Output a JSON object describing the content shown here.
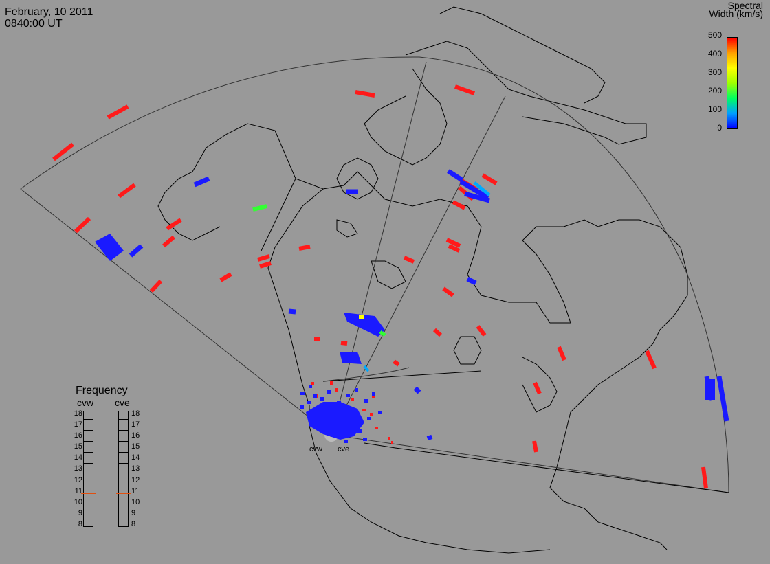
{
  "header": {
    "date": "February, 10 2011",
    "time": "0840:00 UT"
  },
  "colorbar": {
    "title_line1": "Spectral",
    "title_line2": "Width (km/s)",
    "ticks": [
      "500",
      "400",
      "300",
      "200",
      "100",
      "0"
    ],
    "scale": [
      0,
      500
    ],
    "colors": [
      "#0000ff",
      "#00a0ff",
      "#00ff60",
      "#a0ff00",
      "#ffff00",
      "#ffa000",
      "#ff0000"
    ]
  },
  "frequency_panel": {
    "title": "Frequency",
    "radars": [
      {
        "name": "cvw",
        "frequency_mhz": 11
      },
      {
        "name": "cve",
        "frequency_mhz": 11
      }
    ],
    "ticks": [
      "18",
      "17",
      "16",
      "15",
      "14",
      "13",
      "12",
      "11",
      "10",
      "9",
      "8"
    ],
    "range_mhz": [
      8,
      18
    ]
  },
  "stations": [
    {
      "name": "cvw"
    },
    {
      "name": "cve"
    }
  ],
  "map": {
    "background": "#999999",
    "coastline_color": "#000000",
    "fov_color": "#333333"
  },
  "echo_colors": {
    "low": "#1a1aff",
    "high": "#ff1a1a",
    "mid_green": "#33ff33",
    "mid_yellow": "#ffff00",
    "mid_cyan": "#00aaff"
  }
}
